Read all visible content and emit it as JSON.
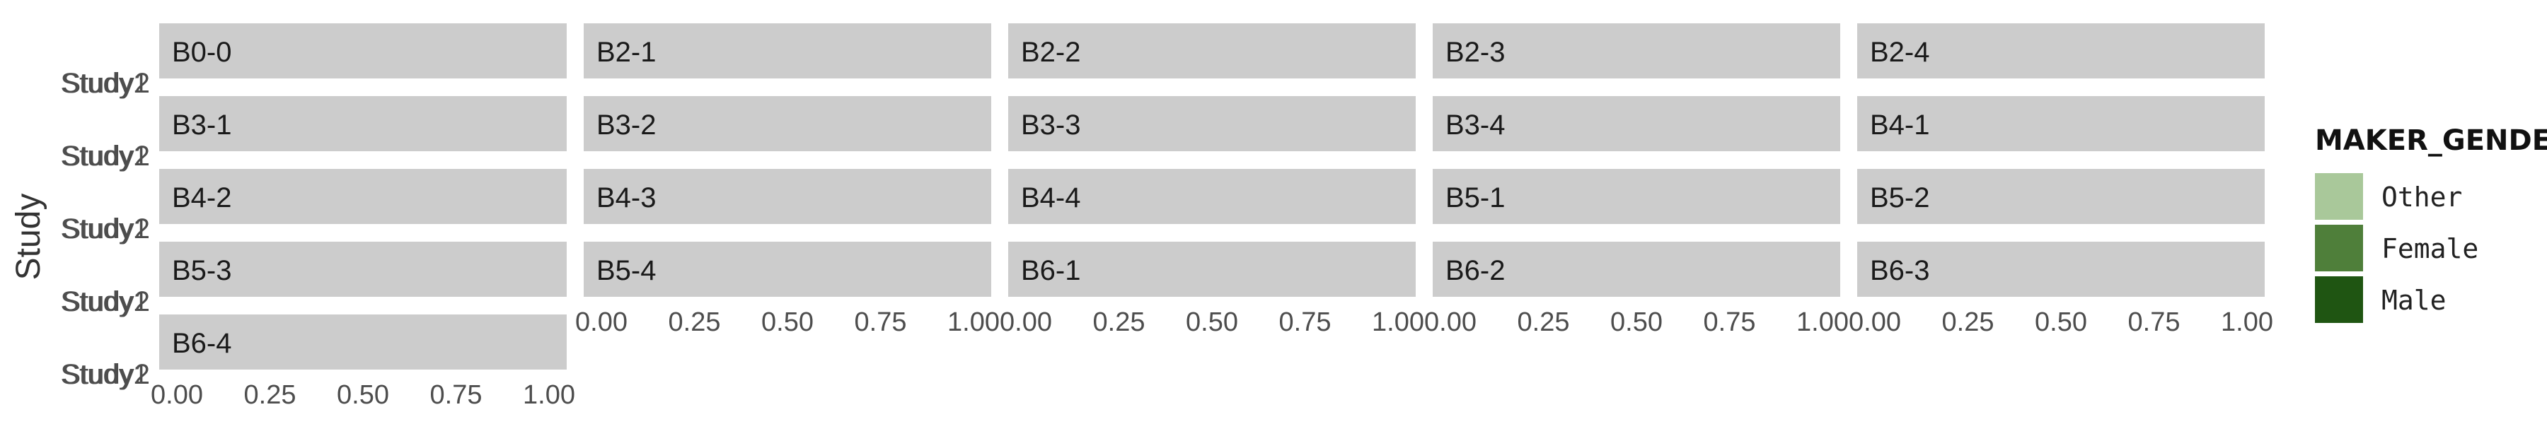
{
  "chart_data": {
    "type": "bar",
    "facet_layout": "wrap",
    "facet_columns": 5,
    "panels": [
      "B0-0",
      "B2-1",
      "B2-2",
      "B2-3",
      "B2-4",
      "B3-1",
      "B3-2",
      "B3-3",
      "B3-4",
      "B4-1",
      "B4-2",
      "B4-3",
      "B4-4",
      "B5-1",
      "B5-2",
      "B5-3",
      "B5-4",
      "B6-1",
      "B6-2",
      "B6-3",
      "B6-4"
    ],
    "y_category_labels": [
      "Study1",
      "Study2"
    ],
    "x_ticks": [
      "0.00",
      "0.25",
      "0.50",
      "0.75",
      "1.00"
    ],
    "xlim": [
      0,
      1
    ],
    "ylabel": "Study",
    "legend": {
      "title": "MAKER_GENDER",
      "position": "right",
      "items": [
        {
          "label": "Other",
          "color": "#a9c89a"
        },
        {
          "label": "Female",
          "color": "#4f7f3a"
        },
        {
          "label": "Male",
          "color": "#1f5512"
        }
      ]
    },
    "colors": {
      "strip": "#cccccc",
      "background": "#ffffff"
    }
  }
}
